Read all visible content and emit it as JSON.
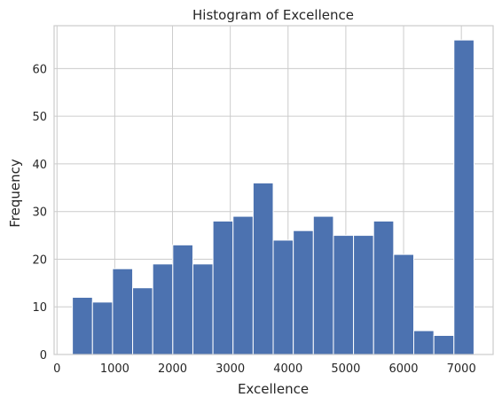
{
  "chart_data": {
    "type": "bar",
    "title": "Histogram of Excellence",
    "xlabel": "Excellence",
    "ylabel": "Frequency",
    "xlim": [
      -50,
      7550
    ],
    "ylim": [
      0,
      69
    ],
    "xticks": [
      0,
      1000,
      2000,
      3000,
      4000,
      5000,
      6000,
      7000
    ],
    "yticks": [
      0,
      10,
      20,
      30,
      40,
      50,
      60
    ],
    "bin_edges": [
      266.7,
      614.3,
      961.9,
      1309.5,
      1657.1,
      2004.7,
      2352.3,
      2699.9,
      3047.5,
      3395.1,
      3742.7,
      4090.3,
      4437.9,
      4785.5,
      5133.1,
      5480.7,
      5828.3,
      6175.9,
      6523.5,
      6871.1,
      7218.7
    ],
    "values": [
      12,
      11,
      18,
      14,
      19,
      23,
      19,
      28,
      29,
      36,
      24,
      26,
      29,
      25,
      25,
      28,
      21,
      5,
      4,
      66
    ],
    "grid": true,
    "bar_color": "#4c72b0",
    "background": "#ffffff",
    "grid_color": "#cccccc"
  }
}
